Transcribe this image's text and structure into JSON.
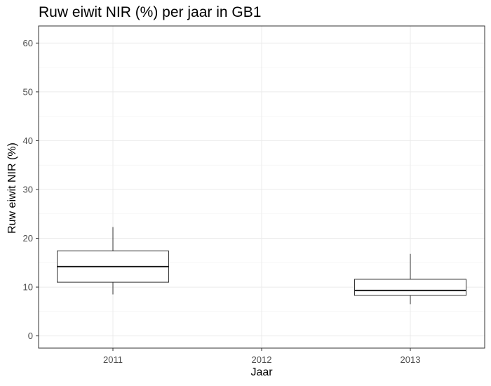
{
  "chart_data": {
    "type": "box",
    "title": "Ruw eiwit NIR (%) per jaar in GB1",
    "xlabel": "Jaar",
    "ylabel": "Ruw eiwit NIR (%)",
    "categories": [
      "2011",
      "2012",
      "2013"
    ],
    "ylim": [
      -2.5,
      63.5
    ],
    "yticks": [
      0,
      10,
      20,
      30,
      40,
      50,
      60
    ],
    "grid": true,
    "boxes": [
      {
        "category": "2011",
        "whisker_low": 8.5,
        "q1": 11.0,
        "median": 14.2,
        "q3": 17.4,
        "whisker_high": 22.3
      },
      {
        "category": "2013",
        "whisker_low": 6.5,
        "q1": 8.3,
        "median": 9.3,
        "q3": 11.6,
        "whisker_high": 16.8
      }
    ]
  }
}
